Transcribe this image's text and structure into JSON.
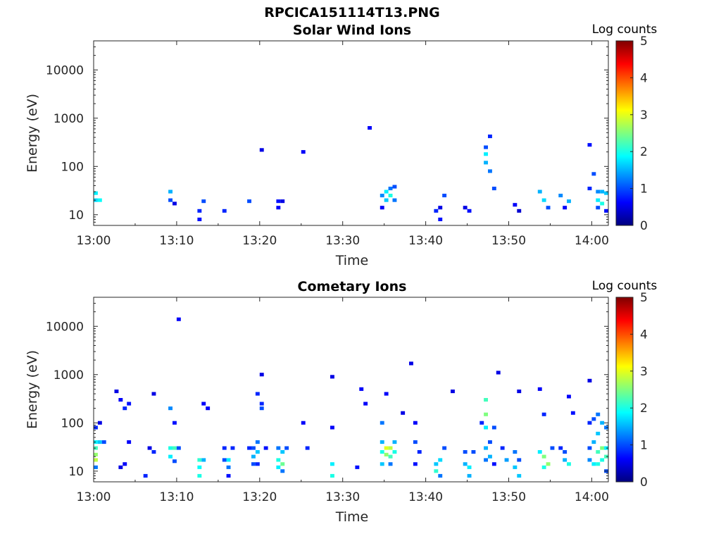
{
  "figure_title": "RPCICA151114T13.PNG",
  "colormap": [
    "#00007f",
    "#0000ff",
    "#007fff",
    "#00ffff",
    "#7fff7f",
    "#ffff00",
    "#ff7f00",
    "#ff0000",
    "#7f0000"
  ],
  "chart_data": [
    {
      "type": "heatmap",
      "title": "Solar Wind Ions",
      "xlabel": "Time",
      "ylabel": "Energy (eV)",
      "yscale": "log",
      "xlim": [
        "13:00",
        "14:02"
      ],
      "ylim": [
        6,
        40000
      ],
      "x_ticks": [
        "13:00",
        "13:10",
        "13:20",
        "13:30",
        "13:40",
        "13:50",
        "14:00"
      ],
      "y_ticks": [
        "10",
        "100",
        "1000",
        "10000"
      ],
      "colorbar": {
        "label": "Log counts",
        "range": [
          0,
          5
        ],
        "ticks": [
          "0",
          "1",
          "2",
          "3",
          "4",
          "5"
        ]
      },
      "grid": false,
      "cells": [
        {
          "t": "13:00:00",
          "e": 28,
          "v": 1.8
        },
        {
          "t": "13:00:00",
          "e": 20,
          "v": 1.7
        },
        {
          "t": "13:00:30",
          "e": 20,
          "v": 1.9
        },
        {
          "t": "13:09:00",
          "e": 30,
          "v": 1.5
        },
        {
          "t": "13:09:00",
          "e": 20,
          "v": 1.0
        },
        {
          "t": "13:09:30",
          "e": 17,
          "v": 0.5
        },
        {
          "t": "13:12:30",
          "e": 12,
          "v": 0.8
        },
        {
          "t": "13:12:30",
          "e": 8,
          "v": 0.7
        },
        {
          "t": "13:13:00",
          "e": 19,
          "v": 1.0
        },
        {
          "t": "13:15:30",
          "e": 12,
          "v": 0.8
        },
        {
          "t": "13:18:30",
          "e": 19,
          "v": 1.0
        },
        {
          "t": "13:22:00",
          "e": 19,
          "v": 0.7
        },
        {
          "t": "13:22:00",
          "e": 14,
          "v": 0.6
        },
        {
          "t": "13:22:30",
          "e": 19,
          "v": 0.5
        },
        {
          "t": "13:20:00",
          "e": 220,
          "v": 0.5
        },
        {
          "t": "13:25:00",
          "e": 200,
          "v": 0.6
        },
        {
          "t": "13:33:00",
          "e": 630,
          "v": 0.6
        },
        {
          "t": "13:34:30",
          "e": 25,
          "v": 1.3
        },
        {
          "t": "13:34:30",
          "e": 14,
          "v": 0.6
        },
        {
          "t": "13:35:00",
          "e": 30,
          "v": 1.8
        },
        {
          "t": "13:35:00",
          "e": 20,
          "v": 1.6
        },
        {
          "t": "13:35:30",
          "e": 35,
          "v": 1.2
        },
        {
          "t": "13:35:30",
          "e": 25,
          "v": 2.0
        },
        {
          "t": "13:36:00",
          "e": 38,
          "v": 1.0
        },
        {
          "t": "13:36:00",
          "e": 20,
          "v": 1.2
        },
        {
          "t": "13:41:00",
          "e": 12,
          "v": 0.8
        },
        {
          "t": "13:41:30",
          "e": 14,
          "v": 0.5
        },
        {
          "t": "13:41:30",
          "e": 8,
          "v": 0.7
        },
        {
          "t": "13:42:00",
          "e": 25,
          "v": 1.0
        },
        {
          "t": "13:44:30",
          "e": 14,
          "v": 0.5
        },
        {
          "t": "13:45:00",
          "e": 12,
          "v": 0.7
        },
        {
          "t": "13:47:00",
          "e": 250,
          "v": 1.0
        },
        {
          "t": "13:47:00",
          "e": 180,
          "v": 1.8
        },
        {
          "t": "13:47:00",
          "e": 120,
          "v": 1.5
        },
        {
          "t": "13:47:30",
          "e": 80,
          "v": 1.2
        },
        {
          "t": "13:47:30",
          "e": 420,
          "v": 0.8
        },
        {
          "t": "13:48:00",
          "e": 35,
          "v": 1.0
        },
        {
          "t": "13:50:30",
          "e": 16,
          "v": 0.6
        },
        {
          "t": "13:51:00",
          "e": 12,
          "v": 0.4
        },
        {
          "t": "13:53:30",
          "e": 30,
          "v": 1.5
        },
        {
          "t": "13:54:00",
          "e": 20,
          "v": 1.7
        },
        {
          "t": "13:54:30",
          "e": 14,
          "v": 1.0
        },
        {
          "t": "13:56:00",
          "e": 25,
          "v": 1.3
        },
        {
          "t": "13:56:30",
          "e": 14,
          "v": 0.6
        },
        {
          "t": "13:57:00",
          "e": 19,
          "v": 1.5
        },
        {
          "t": "13:59:30",
          "e": 280,
          "v": 0.7
        },
        {
          "t": "13:59:30",
          "e": 35,
          "v": 0.8
        },
        {
          "t": "14:00:00",
          "e": 70,
          "v": 1.0
        },
        {
          "t": "14:00:30",
          "e": 30,
          "v": 1.3
        },
        {
          "t": "14:00:30",
          "e": 20,
          "v": 1.8
        },
        {
          "t": "14:00:30",
          "e": 14,
          "v": 1.0
        },
        {
          "t": "14:01:00",
          "e": 30,
          "v": 1.5
        },
        {
          "t": "14:01:00",
          "e": 17,
          "v": 2.0
        },
        {
          "t": "14:01:30",
          "e": 28,
          "v": 1.6
        },
        {
          "t": "14:01:30",
          "e": 12,
          "v": 0.7
        }
      ]
    },
    {
      "type": "heatmap",
      "title": "Cometary Ions",
      "xlabel": "Time",
      "ylabel": "Energy (eV)",
      "yscale": "log",
      "xlim": [
        "13:00",
        "14:02"
      ],
      "ylim": [
        6,
        40000
      ],
      "x_ticks": [
        "13:00",
        "13:10",
        "13:20",
        "13:30",
        "13:40",
        "13:50",
        "14:00"
      ],
      "y_ticks": [
        "10",
        "100",
        "1000",
        "10000"
      ],
      "colorbar": {
        "label": "Log counts",
        "range": [
          0,
          5
        ],
        "ticks": [
          "0",
          "1",
          "2",
          "3",
          "4",
          "5"
        ]
      },
      "grid": false,
      "cells": [
        {
          "t": "13:00:00",
          "e": 40,
          "v": 1.8
        },
        {
          "t": "13:00:00",
          "e": 30,
          "v": 2.2
        },
        {
          "t": "13:00:00",
          "e": 22,
          "v": 2.6
        },
        {
          "t": "13:00:00",
          "e": 17,
          "v": 2.8
        },
        {
          "t": "13:00:00",
          "e": 12,
          "v": 1.2
        },
        {
          "t": "13:00:00",
          "e": 80,
          "v": 0.8
        },
        {
          "t": "13:00:30",
          "e": 40,
          "v": 1.6
        },
        {
          "t": "13:00:30",
          "e": 100,
          "v": 0.5
        },
        {
          "t": "13:01:00",
          "e": 40,
          "v": 1.0
        },
        {
          "t": "13:02:30",
          "e": 450,
          "v": 0.5
        },
        {
          "t": "13:03:00",
          "e": 300,
          "v": 0.6
        },
        {
          "t": "13:03:00",
          "e": 12,
          "v": 0.5
        },
        {
          "t": "13:03:30",
          "e": 200,
          "v": 0.8
        },
        {
          "t": "13:03:30",
          "e": 14,
          "v": 0.6
        },
        {
          "t": "13:04:00",
          "e": 250,
          "v": 0.7
        },
        {
          "t": "13:04:00",
          "e": 40,
          "v": 0.6
        },
        {
          "t": "13:06:00",
          "e": 8,
          "v": 0.8
        },
        {
          "t": "13:06:30",
          "e": 30,
          "v": 0.5
        },
        {
          "t": "13:07:00",
          "e": 25,
          "v": 0.8
        },
        {
          "t": "13:07:00",
          "e": 400,
          "v": 0.5
        },
        {
          "t": "13:09:00",
          "e": 30,
          "v": 2.0
        },
        {
          "t": "13:09:00",
          "e": 20,
          "v": 1.8
        },
        {
          "t": "13:09:00",
          "e": 200,
          "v": 1.3
        },
        {
          "t": "13:09:30",
          "e": 30,
          "v": 2.2
        },
        {
          "t": "13:09:30",
          "e": 16,
          "v": 1.0
        },
        {
          "t": "13:09:30",
          "e": 100,
          "v": 0.7
        },
        {
          "t": "13:10:00",
          "e": 30,
          "v": 1.0
        },
        {
          "t": "13:10:00",
          "e": 14000,
          "v": 0.6
        },
        {
          "t": "13:12:30",
          "e": 17,
          "v": 2.1
        },
        {
          "t": "13:12:30",
          "e": 12,
          "v": 1.9
        },
        {
          "t": "13:12:30",
          "e": 8,
          "v": 2.0
        },
        {
          "t": "13:13:00",
          "e": 17,
          "v": 1.5
        },
        {
          "t": "13:13:00",
          "e": 250,
          "v": 0.6
        },
        {
          "t": "13:13:30",
          "e": 200,
          "v": 0.6
        },
        {
          "t": "13:15:30",
          "e": 30,
          "v": 0.8
        },
        {
          "t": "13:15:30",
          "e": 17,
          "v": 1.0
        },
        {
          "t": "13:16:00",
          "e": 17,
          "v": 1.8
        },
        {
          "t": "13:16:00",
          "e": 12,
          "v": 1.2
        },
        {
          "t": "13:16:00",
          "e": 8,
          "v": 0.7
        },
        {
          "t": "13:16:30",
          "e": 30,
          "v": 0.8
        },
        {
          "t": "13:18:30",
          "e": 30,
          "v": 0.8
        },
        {
          "t": "13:19:00",
          "e": 30,
          "v": 1.0
        },
        {
          "t": "13:19:00",
          "e": 20,
          "v": 1.5
        },
        {
          "t": "13:19:00",
          "e": 14,
          "v": 1.0
        },
        {
          "t": "13:19:30",
          "e": 40,
          "v": 1.2
        },
        {
          "t": "13:19:30",
          "e": 25,
          "v": 1.6
        },
        {
          "t": "13:19:30",
          "e": 14,
          "v": 0.8
        },
        {
          "t": "13:19:30",
          "e": 400,
          "v": 0.8
        },
        {
          "t": "13:20:00",
          "e": 250,
          "v": 0.8
        },
        {
          "t": "13:20:00",
          "e": 200,
          "v": 1.0
        },
        {
          "t": "13:20:00",
          "e": 1000,
          "v": 0.5
        },
        {
          "t": "13:20:30",
          "e": 30,
          "v": 0.7
        },
        {
          "t": "13:22:00",
          "e": 30,
          "v": 1.2
        },
        {
          "t": "13:22:00",
          "e": 17,
          "v": 2.0
        },
        {
          "t": "13:22:00",
          "e": 12,
          "v": 1.8
        },
        {
          "t": "13:22:30",
          "e": 25,
          "v": 1.6
        },
        {
          "t": "13:22:30",
          "e": 14,
          "v": 2.4
        },
        {
          "t": "13:22:30",
          "e": 10,
          "v": 1.2
        },
        {
          "t": "13:23:00",
          "e": 30,
          "v": 1.0
        },
        {
          "t": "13:25:00",
          "e": 100,
          "v": 0.6
        },
        {
          "t": "13:25:30",
          "e": 30,
          "v": 0.8
        },
        {
          "t": "13:28:30",
          "e": 14,
          "v": 1.8
        },
        {
          "t": "13:28:30",
          "e": 8,
          "v": 2.0
        },
        {
          "t": "13:28:30",
          "e": 80,
          "v": 0.6
        },
        {
          "t": "13:28:30",
          "e": 900,
          "v": 0.5
        },
        {
          "t": "13:31:30",
          "e": 12,
          "v": 0.7
        },
        {
          "t": "13:32:00",
          "e": 500,
          "v": 0.6
        },
        {
          "t": "13:32:30",
          "e": 250,
          "v": 0.6
        },
        {
          "t": "13:34:30",
          "e": 100,
          "v": 1.2
        },
        {
          "t": "13:34:30",
          "e": 40,
          "v": 1.5
        },
        {
          "t": "13:34:30",
          "e": 25,
          "v": 2.0
        },
        {
          "t": "13:34:30",
          "e": 14,
          "v": 1.6
        },
        {
          "t": "13:35:00",
          "e": 30,
          "v": 3.0
        },
        {
          "t": "13:35:00",
          "e": 22,
          "v": 2.6
        },
        {
          "t": "13:35:00",
          "e": 400,
          "v": 0.6
        },
        {
          "t": "13:35:30",
          "e": 30,
          "v": 2.8
        },
        {
          "t": "13:35:30",
          "e": 20,
          "v": 2.2
        },
        {
          "t": "13:35:30",
          "e": 14,
          "v": 1.2
        },
        {
          "t": "13:36:00",
          "e": 40,
          "v": 1.5
        },
        {
          "t": "13:36:00",
          "e": 25,
          "v": 2.0
        },
        {
          "t": "13:37:00",
          "e": 160,
          "v": 0.5
        },
        {
          "t": "13:38:00",
          "e": 1700,
          "v": 0.5
        },
        {
          "t": "13:38:30",
          "e": 100,
          "v": 0.6
        },
        {
          "t": "13:38:30",
          "e": 40,
          "v": 1.0
        },
        {
          "t": "13:38:30",
          "e": 14,
          "v": 0.7
        },
        {
          "t": "13:39:00",
          "e": 25,
          "v": 0.8
        },
        {
          "t": "13:41:00",
          "e": 14,
          "v": 1.6
        },
        {
          "t": "13:41:00",
          "e": 10,
          "v": 2.1
        },
        {
          "t": "13:41:30",
          "e": 17,
          "v": 1.7
        },
        {
          "t": "13:41:30",
          "e": 8,
          "v": 1.2
        },
        {
          "t": "13:42:00",
          "e": 30,
          "v": 1.0
        },
        {
          "t": "13:43:00",
          "e": 450,
          "v": 0.5
        },
        {
          "t": "13:44:30",
          "e": 25,
          "v": 1.0
        },
        {
          "t": "13:44:30",
          "e": 14,
          "v": 1.5
        },
        {
          "t": "13:45:00",
          "e": 12,
          "v": 1.8
        },
        {
          "t": "13:45:00",
          "e": 8,
          "v": 1.5
        },
        {
          "t": "13:45:30",
          "e": 25,
          "v": 1.0
        },
        {
          "t": "13:46:30",
          "e": 100,
          "v": 0.8
        },
        {
          "t": "13:47:00",
          "e": 300,
          "v": 2.2
        },
        {
          "t": "13:47:00",
          "e": 150,
          "v": 2.5
        },
        {
          "t": "13:47:00",
          "e": 80,
          "v": 1.8
        },
        {
          "t": "13:47:00",
          "e": 30,
          "v": 1.5
        },
        {
          "t": "13:47:00",
          "e": 17,
          "v": 1.2
        },
        {
          "t": "13:47:30",
          "e": 40,
          "v": 1.0
        },
        {
          "t": "13:47:30",
          "e": 20,
          "v": 1.5
        },
        {
          "t": "13:48:00",
          "e": 80,
          "v": 1.0
        },
        {
          "t": "13:48:00",
          "e": 14,
          "v": 0.7
        },
        {
          "t": "13:48:30",
          "e": 1100,
          "v": 0.5
        },
        {
          "t": "13:49:00",
          "e": 30,
          "v": 0.8
        },
        {
          "t": "13:49:30",
          "e": 17,
          "v": 1.4
        },
        {
          "t": "13:50:30",
          "e": 25,
          "v": 1.2
        },
        {
          "t": "13:50:30",
          "e": 12,
          "v": 1.6
        },
        {
          "t": "13:51:00",
          "e": 17,
          "v": 1.0
        },
        {
          "t": "13:51:00",
          "e": 8,
          "v": 1.6
        },
        {
          "t": "13:51:00",
          "e": 450,
          "v": 0.5
        },
        {
          "t": "13:53:30",
          "e": 25,
          "v": 1.8
        },
        {
          "t": "13:53:30",
          "e": 500,
          "v": 0.6
        },
        {
          "t": "13:54:00",
          "e": 20,
          "v": 2.5
        },
        {
          "t": "13:54:00",
          "e": 12,
          "v": 2.0
        },
        {
          "t": "13:54:00",
          "e": 150,
          "v": 0.8
        },
        {
          "t": "13:54:30",
          "e": 14,
          "v": 2.6
        },
        {
          "t": "13:55:00",
          "e": 30,
          "v": 1.0
        },
        {
          "t": "13:56:00",
          "e": 30,
          "v": 0.8
        },
        {
          "t": "13:56:30",
          "e": 25,
          "v": 1.0
        },
        {
          "t": "13:56:30",
          "e": 17,
          "v": 1.5
        },
        {
          "t": "13:57:00",
          "e": 14,
          "v": 2.0
        },
        {
          "t": "13:57:00",
          "e": 350,
          "v": 0.6
        },
        {
          "t": "13:57:30",
          "e": 160,
          "v": 0.7
        },
        {
          "t": "13:59:30",
          "e": 100,
          "v": 0.8
        },
        {
          "t": "13:59:30",
          "e": 30,
          "v": 1.0
        },
        {
          "t": "13:59:30",
          "e": 17,
          "v": 1.3
        },
        {
          "t": "13:59:30",
          "e": 750,
          "v": 0.5
        },
        {
          "t": "14:00:00",
          "e": 120,
          "v": 1.0
        },
        {
          "t": "14:00:00",
          "e": 40,
          "v": 1.5
        },
        {
          "t": "14:00:00",
          "e": 14,
          "v": 1.8
        },
        {
          "t": "14:00:30",
          "e": 150,
          "v": 1.2
        },
        {
          "t": "14:00:30",
          "e": 60,
          "v": 1.6
        },
        {
          "t": "14:00:30",
          "e": 25,
          "v": 2.2
        },
        {
          "t": "14:00:30",
          "e": 14,
          "v": 2.0
        },
        {
          "t": "14:01:00",
          "e": 100,
          "v": 1.5
        },
        {
          "t": "14:01:00",
          "e": 30,
          "v": 2.5
        },
        {
          "t": "14:01:00",
          "e": 17,
          "v": 2.0
        },
        {
          "t": "14:01:30",
          "e": 80,
          "v": 1.2
        },
        {
          "t": "14:01:30",
          "e": 30,
          "v": 1.8
        },
        {
          "t": "14:01:30",
          "e": 20,
          "v": 2.2
        },
        {
          "t": "14:01:30",
          "e": 10,
          "v": 1.0
        }
      ]
    }
  ]
}
